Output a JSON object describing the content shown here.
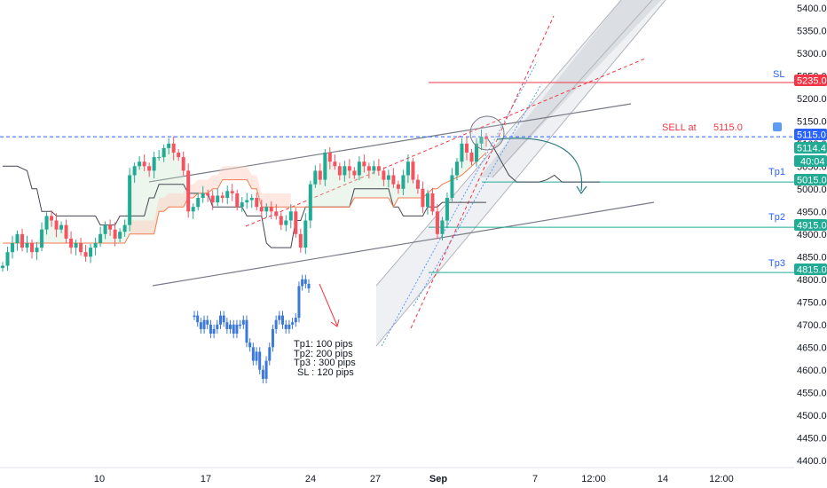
{
  "chart_data": {
    "type": "line",
    "title": "",
    "xlabel": "",
    "ylabel": "",
    "ylim": [
      4385,
      5420
    ],
    "grid": false,
    "x_ticks": [
      "10",
      "17",
      "24",
      "27",
      "Sep",
      "7",
      "12:00",
      "14",
      "12:00"
    ],
    "y_ticks": [
      "5400.0",
      "5350.0",
      "5300.0",
      "5250.0",
      "5200.0",
      "5150.0",
      "5100.0",
      "5050.0",
      "5000.0",
      "4950.0",
      "4900.0",
      "4850.0",
      "4800.0",
      "4750.0",
      "4700.0",
      "4650.0",
      "4600.0",
      "4550.0",
      "4500.0",
      "4450.0",
      "4400.0"
    ],
    "price_series": [
      4830,
      4860,
      4880,
      4900,
      4870,
      4880,
      4860,
      4870,
      4910,
      4940,
      4930,
      4910,
      4920,
      4890,
      4870,
      4880,
      4860,
      4850,
      4870,
      4880,
      4900,
      4920,
      4910,
      4890,
      4905,
      4920,
      5030,
      5050,
      5060,
      5050,
      5040,
      5070,
      5070,
      5090,
      5100,
      5080,
      5070,
      5040,
      4950,
      4960,
      4980,
      4990,
      4985,
      4970,
      4985,
      4980,
      4995,
      4990,
      4960,
      4970,
      4975,
      4980,
      4960,
      4950,
      4960,
      4950,
      4940,
      4920,
      4930,
      4950,
      4900,
      4870,
      4930,
      5010,
      5040,
      5020,
      5080,
      5060,
      5050,
      5030,
      5050,
      5040,
      5030,
      5060,
      5050,
      5040,
      5050,
      5040,
      5020,
      5030,
      5010,
      5000,
      5030,
      5060,
      5020,
      5000,
      4960,
      4990,
      4950,
      4900,
      4930,
      4980,
      5030,
      5060,
      5100,
      5080,
      5060,
      5100,
      5115,
      5110
    ],
    "baseline_series": [
      5050,
      5050,
      5050,
      5050,
      5045,
      5040,
      5000,
      5000,
      4950,
      4950,
      4950,
      4940,
      4940,
      4940,
      4940,
      4940,
      4940,
      4940,
      4940,
      4940,
      4920,
      4920,
      4920,
      4920,
      4940,
      4940,
      4940,
      4940,
      4940,
      4940,
      4980,
      4980,
      5010,
      5010,
      5010,
      5010,
      5010,
      5010,
      4990,
      4990,
      4990,
      4990,
      4990,
      4960,
      4960,
      4960,
      4960,
      4960,
      4960,
      4960,
      4940,
      4940,
      4940,
      4940,
      4880,
      4870,
      4870,
      4870,
      4870,
      4870,
      4930,
      4930,
      4960,
      4960,
      4960,
      4960,
      4960,
      4960,
      4960,
      4960,
      4960,
      4960,
      5000,
      5000,
      5000,
      5000,
      5000,
      5000,
      5000,
      5000,
      4960,
      4960,
      4940,
      4940,
      4940,
      4940,
      4940,
      4960,
      4960,
      4960,
      4970,
      4970,
      4970,
      4970,
      4970,
      4970,
      4970,
      4970,
      4970,
      4970
    ],
    "cloud_series": [
      4880,
      4880,
      4880,
      4880,
      4880,
      4880,
      4880,
      4880,
      4880,
      4880,
      4880,
      4880,
      4880,
      4880,
      4880,
      4880,
      4880,
      4880,
      4880,
      4880,
      4880,
      4880,
      4880,
      4880,
      4880,
      4880,
      4900,
      4900,
      4900,
      4900,
      4900,
      4900,
      4950,
      4950,
      4960,
      4960,
      4960,
      4960,
      4980,
      4980,
      4990,
      4990,
      4990,
      5000,
      5000,
      5020,
      5020,
      5020,
      5020,
      5020,
      5020,
      5000,
      5000,
      4960,
      4960,
      4960,
      4960,
      4960,
      4960,
      4960,
      4960,
      4960,
      4960,
      4960,
      4960,
      4960,
      4960,
      4960,
      4960,
      4960,
      4960,
      4960,
      4980,
      4980,
      4980,
      4980,
      4980,
      4980,
      4980,
      4980,
      4960,
      4980,
      4980,
      4980,
      4980,
      4980,
      4980,
      4990,
      5000,
      5000,
      5010,
      5015,
      5020,
      5025,
      5030,
      5040,
      5050,
      5060,
      5070,
      5080
    ],
    "future_series": [
      5115,
      5090,
      5060,
      5030,
      5015,
      5015,
      5015,
      5015,
      5020,
      5030,
      5015,
      5015,
      5015,
      5015,
      5015,
      5015
    ],
    "projection_series": [
      4720,
      4705,
      4690,
      4710,
      4700,
      4680,
      4690,
      4700,
      4720,
      4705,
      4690,
      4700,
      4680,
      4700,
      4700,
      4710,
      4660,
      4650,
      4620,
      4640,
      4600,
      4580,
      4620,
      4650,
      4690,
      4710,
      4720,
      4700,
      4690,
      4700,
      4705,
      4715,
      4785,
      4800,
      4790,
      4780
    ],
    "levels": [
      {
        "name": "SL",
        "label": "SL",
        "value": 5235,
        "tag": "5235.0",
        "color": "#f23645"
      },
      {
        "name": "Entry",
        "label": "SELL at",
        "value": 5115,
        "tag": "5115.0",
        "color": "#2962ff"
      },
      {
        "name": "Tp1",
        "label": "Tp1",
        "value": 5015,
        "tag": "5015.0",
        "color": "#22ab94"
      },
      {
        "name": "Tp2",
        "label": "Tp2",
        "value": 4915,
        "tag": "4915.0",
        "color": "#22ab94"
      },
      {
        "name": "Tp3",
        "label": "Tp3",
        "value": 4815,
        "tag": "4815.0",
        "color": "#22ab94"
      }
    ],
    "last_price": "5114.4",
    "countdown": "40:04",
    "sell_text": "SELL at",
    "sell_price": "5115.0",
    "targets_note": [
      "Tp1: 100 pips",
      "Tp2: 200 pips",
      "Tp3 : 300 pips",
      "SL : 120 pips"
    ]
  },
  "colors": {
    "up": "#22ab94",
    "down": "#f7525f",
    "projection": "#3c78d8",
    "baseline": "#434651",
    "cloud": "#f57c50",
    "sl": "#f23645",
    "entry": "#2962ff",
    "tp": "#22ab94",
    "trend": "#787b86",
    "last_price": "#22ab94"
  }
}
